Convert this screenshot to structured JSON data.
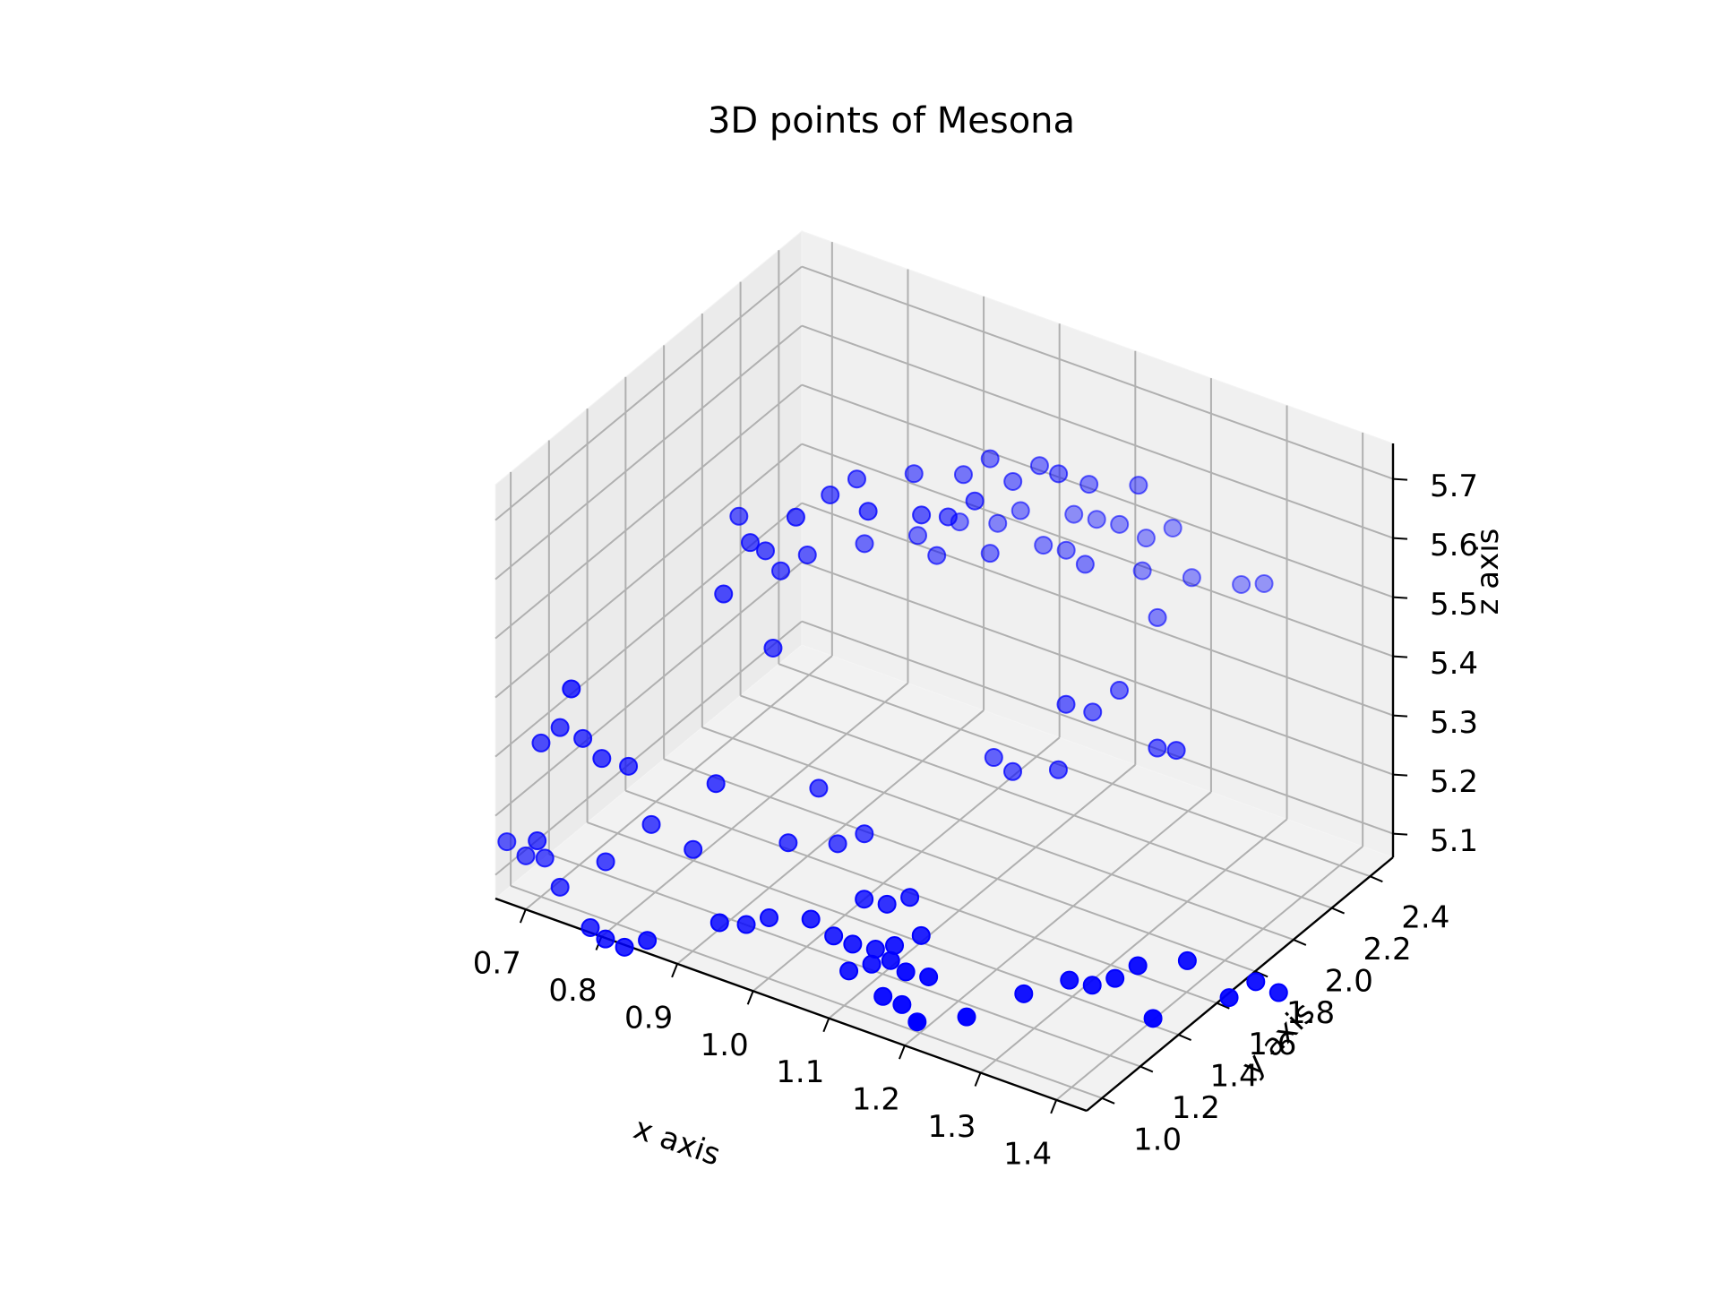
{
  "chart_data": {
    "type": "scatter",
    "projection": "3d",
    "title": "3D points of Mesona",
    "xlabel": "x axis",
    "ylabel": "y axis",
    "zlabel": "z axis",
    "xticks": [
      "0.7",
      "0.8",
      "0.9",
      "1.0",
      "1.1",
      "1.2",
      "1.3",
      "1.4"
    ],
    "yticks": [
      "1.0",
      "1.2",
      "1.4",
      "1.6",
      "1.8",
      "2.0",
      "2.2",
      "2.4"
    ],
    "zticks": [
      "5.1",
      "5.2",
      "5.3",
      "5.4",
      "5.5",
      "5.6",
      "5.7"
    ],
    "xlim": [
      0.66,
      1.44
    ],
    "ylim": [
      0.92,
      2.52
    ],
    "zlim": [
      5.06,
      5.76
    ],
    "grid": true,
    "marker_color": "#0000ff",
    "points": [
      [
        0.86,
        1.4,
        5.67
      ],
      [
        0.94,
        1.56,
        5.7
      ],
      [
        0.96,
        1.62,
        5.72
      ],
      [
        1.0,
        1.76,
        5.71
      ],
      [
        1.04,
        1.86,
        5.7
      ],
      [
        1.06,
        1.92,
        5.72
      ],
      [
        1.1,
        2.02,
        5.7
      ],
      [
        1.12,
        2.04,
        5.69
      ],
      [
        1.08,
        1.96,
        5.68
      ],
      [
        1.14,
        2.12,
        5.66
      ],
      [
        1.18,
        2.22,
        5.65
      ],
      [
        0.98,
        1.6,
        5.68
      ],
      [
        1.02,
        1.72,
        5.66
      ],
      [
        1.04,
        1.78,
        5.65
      ],
      [
        1.06,
        1.84,
        5.67
      ],
      [
        0.92,
        1.46,
        5.68
      ],
      [
        0.88,
        1.38,
        5.64
      ],
      [
        0.89,
        1.42,
        5.62
      ],
      [
        0.92,
        1.52,
        5.6
      ],
      [
        0.96,
        1.66,
        5.6
      ],
      [
        1.0,
        1.78,
        5.6
      ],
      [
        1.03,
        1.88,
        5.61
      ],
      [
        1.06,
        1.96,
        5.6
      ],
      [
        1.08,
        2.0,
        5.62
      ],
      [
        1.12,
        2.12,
        5.6
      ],
      [
        1.14,
        2.16,
        5.59
      ],
      [
        1.16,
        2.2,
        5.58
      ],
      [
        1.2,
        2.32,
        5.56
      ],
      [
        0.86,
        1.32,
        5.56
      ],
      [
        0.9,
        1.46,
        5.58
      ],
      [
        1.18,
        2.26,
        5.55
      ],
      [
        1.02,
        1.8,
        5.57
      ],
      [
        1.06,
        1.92,
        5.56
      ],
      [
        1.1,
        2.04,
        5.56
      ],
      [
        1.12,
        2.08,
        5.55
      ],
      [
        0.9,
        1.42,
        5.46
      ],
      [
        1.14,
        2.1,
        5.53
      ],
      [
        1.18,
        2.24,
        5.5
      ],
      [
        1.22,
        2.34,
        5.48
      ],
      [
        1.26,
        2.44,
        5.46
      ],
      [
        1.28,
        2.48,
        5.46
      ],
      [
        1.2,
        2.24,
        5.43
      ],
      [
        0.74,
        1.0,
        5.43
      ],
      [
        0.72,
        1.02,
        5.35
      ],
      [
        0.74,
        1.06,
        5.33
      ],
      [
        0.76,
        1.08,
        5.3
      ],
      [
        0.7,
        1.0,
        5.32
      ],
      [
        1.18,
        2.12,
        5.33
      ],
      [
        1.14,
        2.0,
        5.32
      ],
      [
        1.16,
        2.06,
        5.3
      ],
      [
        0.78,
        1.14,
        5.28
      ],
      [
        0.7,
        0.98,
        5.16
      ],
      [
        0.66,
        0.98,
        5.14
      ],
      [
        0.68,
        1.0,
        5.12
      ],
      [
        0.7,
        1.02,
        5.12
      ],
      [
        0.72,
        1.02,
        5.08
      ],
      [
        0.86,
        1.28,
        5.25
      ],
      [
        0.8,
        1.18,
        5.18
      ],
      [
        0.94,
        1.5,
        5.22
      ],
      [
        0.92,
        1.42,
        5.14
      ],
      [
        0.76,
        1.1,
        5.12
      ],
      [
        0.84,
        1.24,
        5.14
      ],
      [
        0.96,
        1.52,
        5.13
      ],
      [
        0.98,
        1.58,
        5.14
      ],
      [
        1.08,
        1.86,
        5.24
      ],
      [
        1.1,
        1.88,
        5.22
      ],
      [
        1.14,
        1.96,
        5.22
      ],
      [
        1.22,
        2.16,
        5.24
      ],
      [
        1.24,
        2.18,
        5.24
      ],
      [
        0.76,
        1.02,
        5.03
      ],
      [
        0.78,
        1.02,
        5.02
      ],
      [
        0.8,
        1.04,
        5.01
      ],
      [
        0.82,
        1.08,
        5.02
      ],
      [
        0.88,
        1.22,
        5.04
      ],
      [
        0.9,
        1.28,
        5.03
      ],
      [
        0.92,
        1.32,
        5.04
      ],
      [
        0.96,
        1.38,
        5.04
      ],
      [
        1.0,
        1.5,
        5.06
      ],
      [
        1.02,
        1.54,
        5.05
      ],
      [
        1.04,
        1.58,
        5.06
      ],
      [
        0.98,
        1.42,
        5.01
      ],
      [
        1.0,
        1.44,
        5.0
      ],
      [
        1.02,
        1.48,
        4.99
      ],
      [
        1.04,
        1.5,
        5.0
      ],
      [
        1.06,
        1.56,
        5.01
      ],
      [
        1.0,
        1.42,
        4.96
      ],
      [
        1.02,
        1.46,
        4.97
      ],
      [
        1.04,
        1.48,
        4.98
      ],
      [
        1.06,
        1.48,
        4.97
      ],
      [
        1.08,
        1.52,
        4.96
      ],
      [
        1.04,
        1.44,
        4.93
      ],
      [
        1.06,
        1.46,
        4.92
      ],
      [
        1.08,
        1.46,
        4.9
      ],
      [
        1.12,
        1.56,
        4.9
      ],
      [
        1.16,
        1.7,
        4.92
      ],
      [
        1.2,
        1.78,
        4.94
      ],
      [
        1.22,
        1.82,
        4.93
      ],
      [
        1.24,
        1.86,
        4.94
      ],
      [
        1.26,
        1.9,
        4.96
      ],
      [
        1.3,
        2.0,
        4.96
      ],
      [
        1.28,
        1.9,
        4.88
      ],
      [
        1.34,
        2.06,
        4.9
      ],
      [
        1.36,
        2.12,
        4.92
      ],
      [
        1.38,
        2.16,
        4.9
      ]
    ]
  }
}
